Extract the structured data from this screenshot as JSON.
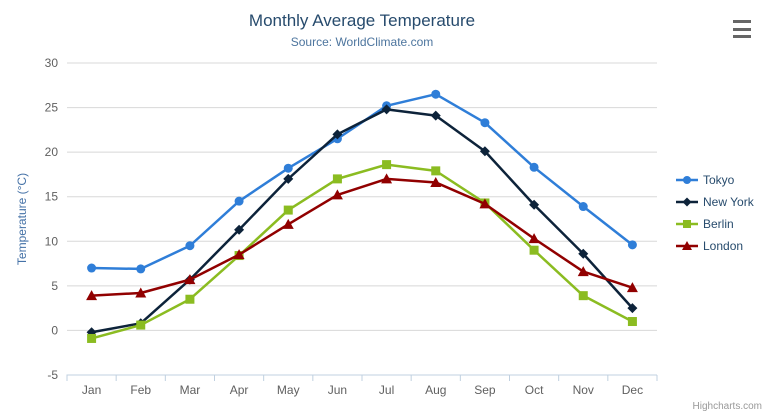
{
  "chart": {
    "title": "Monthly Average Temperature",
    "subtitle": "Source: WorldClimate.com",
    "credits": "Highcharts.com",
    "export_menu_icon": "hamburger-icon"
  },
  "chart_data": {
    "type": "line",
    "title": "Monthly Average Temperature",
    "subtitle": "Source: WorldClimate.com",
    "categories": [
      "Jan",
      "Feb",
      "Mar",
      "Apr",
      "May",
      "Jun",
      "Jul",
      "Aug",
      "Sep",
      "Oct",
      "Nov",
      "Dec"
    ],
    "xlabel": "",
    "ylabel": "Temperature (°C)",
    "ylim": [
      -5,
      30
    ],
    "ytick_step": 5,
    "yticks": [
      -5,
      0,
      5,
      10,
      15,
      20,
      25,
      30
    ],
    "grid": true,
    "legend_position": "right",
    "colors": {
      "title_text": "#274b6d",
      "subtitle_text": "#4d759e",
      "axis_label_text": "#606060",
      "yaxis_title_text": "#4572a7",
      "gridline": "#d8d8d8",
      "axis_line": "#c0d0e0",
      "legend_text": "#274b6d",
      "credits_text": "#999999",
      "menu_icon": "#666666"
    },
    "series": [
      {
        "name": "Tokyo",
        "color": "#2f7ed8",
        "marker": "circle",
        "values": [
          7.0,
          6.9,
          9.5,
          14.5,
          18.2,
          21.5,
          25.2,
          26.5,
          23.3,
          18.3,
          13.9,
          9.6
        ]
      },
      {
        "name": "New York",
        "color": "#0d233a",
        "marker": "diamond",
        "values": [
          -0.2,
          0.8,
          5.7,
          11.3,
          17.0,
          22.0,
          24.8,
          24.1,
          20.1,
          14.1,
          8.6,
          2.5
        ]
      },
      {
        "name": "Berlin",
        "color": "#8bbc21",
        "marker": "square",
        "values": [
          -0.9,
          0.6,
          3.5,
          8.4,
          13.5,
          17.0,
          18.6,
          17.9,
          14.3,
          9.0,
          3.9,
          1.0
        ]
      },
      {
        "name": "London",
        "color": "#910000",
        "marker": "triangle",
        "values": [
          3.9,
          4.2,
          5.7,
          8.5,
          11.9,
          15.2,
          17.0,
          16.6,
          14.2,
          10.3,
          6.6,
          4.8
        ]
      }
    ]
  }
}
